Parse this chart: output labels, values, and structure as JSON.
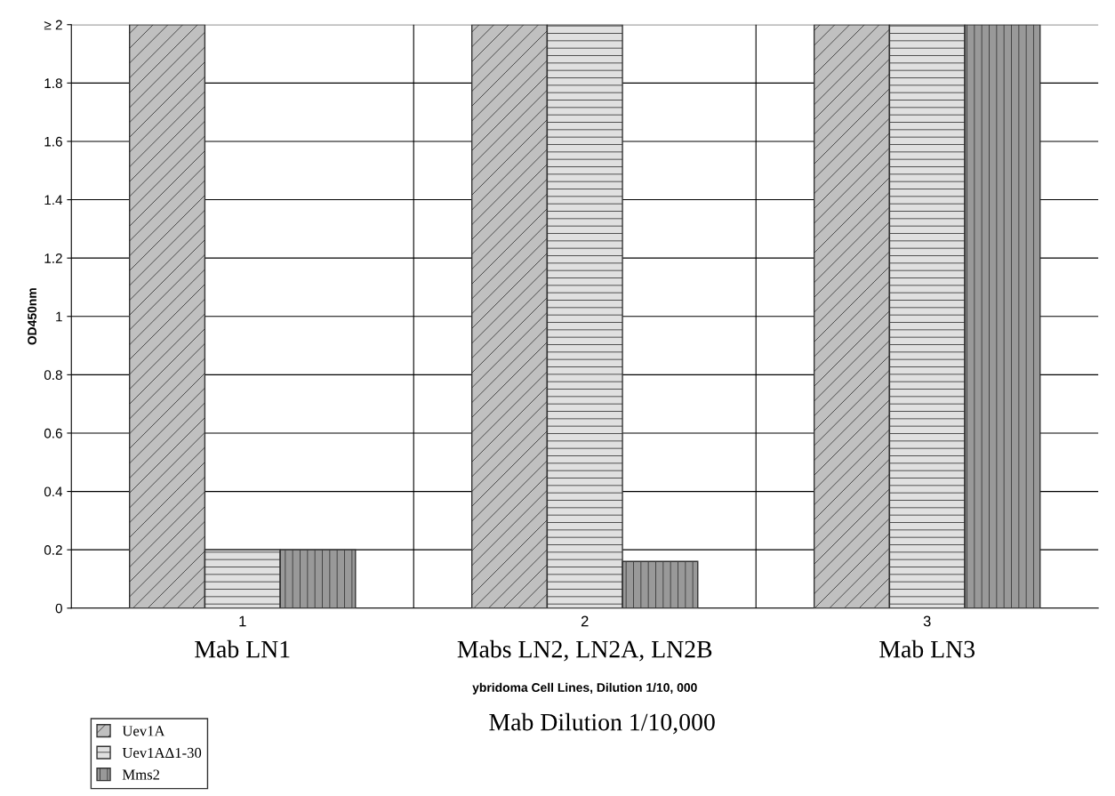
{
  "chart_data": {
    "type": "bar",
    "xlabel": "ybridoma Cell Lines, Dilution 1/10, 000",
    "ylabel": "OD450nm",
    "categories": [
      "1",
      "2",
      "3"
    ],
    "series": [
      {
        "name": "Uev1A",
        "color": "#c0c0c0",
        "values": [
          2,
          2,
          2
        ]
      },
      {
        "name": "Uev1AΔ1-30",
        "color": "#e0e0e0",
        "values": [
          0.2,
          2,
          2
        ]
      },
      {
        "name": "Mms2",
        "color": "#999999",
        "values": [
          0.2,
          0.16,
          2
        ]
      }
    ],
    "ylim": [
      0,
      2
    ],
    "yticks": [
      0,
      0.2,
      0.4,
      0.6,
      0.8,
      1,
      1.2,
      1.4,
      1.6,
      1.8,
      {
        "value": 2,
        "label": "≥ 2"
      }
    ],
    "grid": true,
    "legend": "bottom left",
    "annotations": [
      "Mab LN1",
      "Mabs LN2, LN2A, LN2B",
      "Mab LN3",
      "Mab Dilution 1/10,000"
    ]
  }
}
